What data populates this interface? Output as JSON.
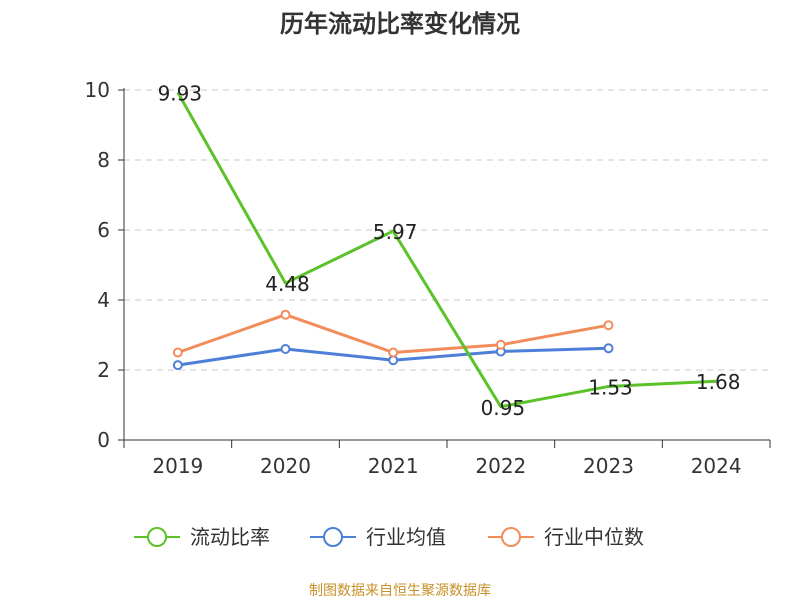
{
  "chart_data": {
    "type": "line",
    "title": "历年流动比率变化情况",
    "categories": [
      "2019",
      "2020",
      "2021",
      "2022",
      "2023",
      "2024"
    ],
    "ylim": [
      0,
      10
    ],
    "yticks": [
      "0",
      "2",
      "4",
      "6",
      "8",
      "10"
    ],
    "grid": true,
    "legend_position": "bottom",
    "series": [
      {
        "name": "流动比率",
        "color": "#5bc22a",
        "values": [
          9.93,
          4.48,
          5.97,
          0.95,
          1.53,
          1.68
        ],
        "labels": [
          "9.93",
          "4.48",
          "5.97",
          "0.95",
          "1.53",
          "1.68"
        ],
        "markers": false
      },
      {
        "name": "行业均值",
        "color": "#4e7fd8",
        "values": [
          2.14,
          2.6,
          2.28,
          2.53,
          2.62,
          null
        ],
        "markers": true
      },
      {
        "name": "行业中位数",
        "color": "#f28c5a",
        "values": [
          2.5,
          3.58,
          2.5,
          2.72,
          3.28,
          null
        ],
        "markers": true
      }
    ]
  },
  "source": "制图数据来自恒生聚源数据库",
  "source_color": "#c8902a"
}
